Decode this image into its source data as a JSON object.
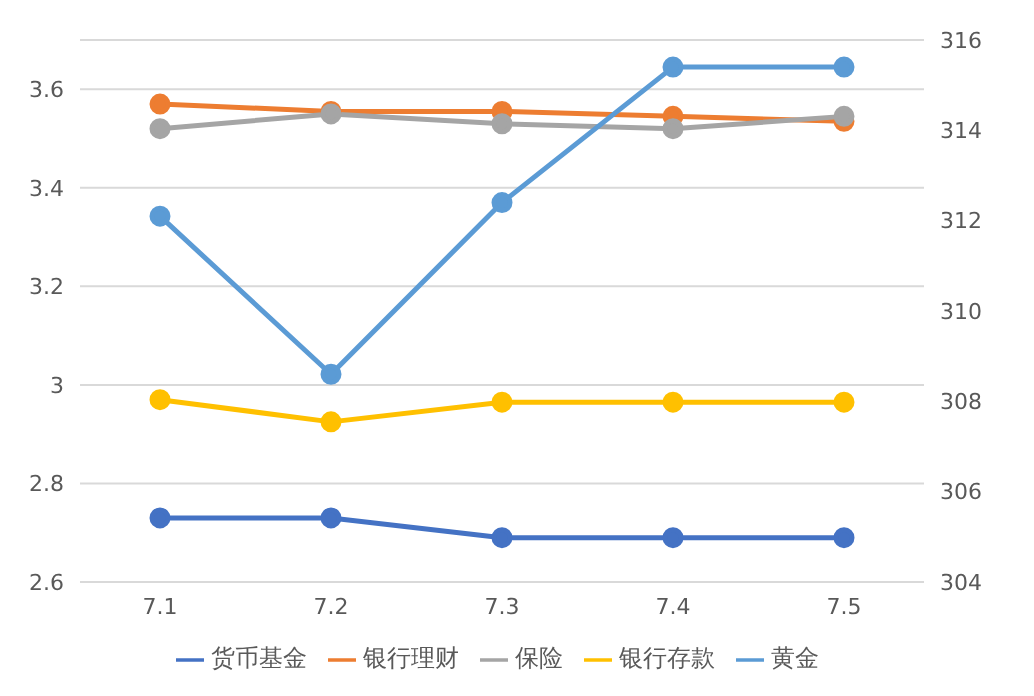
{
  "chart_data": {
    "type": "line",
    "categories": [
      "7.1",
      "7.2",
      "7.3",
      "7.4",
      "7.5"
    ],
    "series": [
      {
        "name": "货币基金",
        "color": "#4472c4",
        "values": [
          2.73,
          2.73,
          2.69,
          2.69,
          2.69
        ]
      },
      {
        "name": "银行理财",
        "color": "#ed7d31",
        "values": [
          3.57,
          3.555,
          3.555,
          3.545,
          3.535
        ]
      },
      {
        "name": "保险",
        "color": "#a5a5a5",
        "values": [
          3.52,
          3.55,
          3.53,
          3.52,
          3.545
        ]
      },
      {
        "name": "银行存款",
        "color": "#ffc000",
        "values": [
          2.97,
          2.925,
          2.965,
          2.965,
          2.965
        ]
      },
      {
        "name": "黄金",
        "color": "#5b9bd5",
        "axis": "y2",
        "values": [
          312.1,
          308.6,
          312.4,
          315.4,
          315.4
        ]
      }
    ],
    "ylim": [
      2.6,
      3.7
    ],
    "yticks": [
      {
        "value": 2.6,
        "label": "2.6"
      },
      {
        "value": 2.8,
        "label": "2.8"
      },
      {
        "value": 3,
        "label": "3"
      },
      {
        "value": 3.2,
        "label": "3.2"
      },
      {
        "value": 3.4,
        "label": "3.4"
      },
      {
        "value": 3.6,
        "label": "3.6"
      }
    ],
    "y2lim": [
      304,
      316
    ],
    "y2ticks": [
      304,
      306,
      308,
      310,
      312,
      314,
      316
    ],
    "grid": "y",
    "legend": "bottom",
    "marker": "circle",
    "line_style": "solid"
  }
}
